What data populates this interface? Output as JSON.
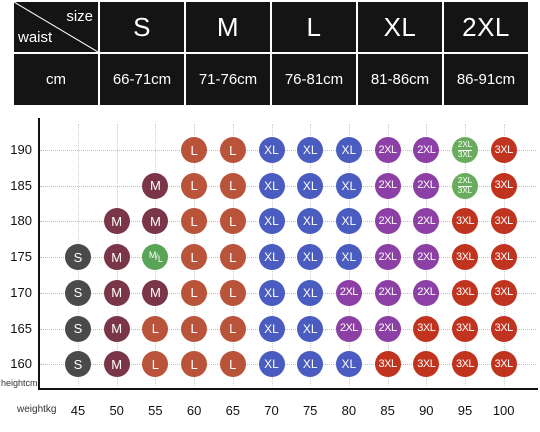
{
  "size_table": {
    "corner": {
      "size_label": "size",
      "waist_label": "waist"
    },
    "sizes": [
      "S",
      "M",
      "L",
      "XL",
      "2XL"
    ],
    "unit_label": "cm",
    "waist_ranges": [
      "66-71cm",
      "71-76cm",
      "76-81cm",
      "81-86cm",
      "86-91cm"
    ]
  },
  "chart_data": {
    "type": "table",
    "y_axis_title": "heightcm",
    "x_axis_title": "weightkg",
    "heights": [
      190,
      185,
      180,
      175,
      170,
      165,
      160
    ],
    "weights": [
      45,
      50,
      55,
      60,
      65,
      70,
      75,
      80,
      85,
      90,
      95,
      100
    ],
    "colors": {
      "S": "#4a4a4a",
      "M": "#7a3648",
      "M/L": "#5aa458",
      "L": "#b9543a",
      "XL": "#4a5cc0",
      "2XL": "#8c3fa4",
      "2XL/3XL": "#6aac5e",
      "3XL": "#c0331f"
    },
    "rows": [
      {
        "height": 190,
        "sizes": [
          "",
          "",
          "",
          "L",
          "L",
          "XL",
          "XL",
          "XL",
          "2XL",
          "2XL",
          "2XL/3XL",
          "3XL"
        ]
      },
      {
        "height": 185,
        "sizes": [
          "",
          "",
          "M",
          "L",
          "L",
          "XL",
          "XL",
          "XL",
          "2XL",
          "2XL",
          "2XL/3XL",
          "3XL"
        ]
      },
      {
        "height": 180,
        "sizes": [
          "",
          "M",
          "M",
          "L",
          "L",
          "XL",
          "XL",
          "XL",
          "2XL",
          "2XL",
          "3XL",
          "3XL"
        ]
      },
      {
        "height": 175,
        "sizes": [
          "S",
          "M",
          "M/L",
          "L",
          "L",
          "XL",
          "XL",
          "XL",
          "2XL",
          "2XL",
          "3XL",
          "3XL"
        ]
      },
      {
        "height": 170,
        "sizes": [
          "S",
          "M",
          "M",
          "L",
          "L",
          "XL",
          "XL",
          "2XL",
          "2XL",
          "2XL",
          "3XL",
          "3XL"
        ]
      },
      {
        "height": 165,
        "sizes": [
          "S",
          "M",
          "L",
          "L",
          "L",
          "XL",
          "XL",
          "2XL",
          "2XL",
          "3XL",
          "3XL",
          "3XL"
        ]
      },
      {
        "height": 160,
        "sizes": [
          "S",
          "M",
          "L",
          "L",
          "L",
          "XL",
          "XL",
          "XL",
          "3XL",
          "3XL",
          "3XL",
          "3XL"
        ]
      }
    ]
  }
}
